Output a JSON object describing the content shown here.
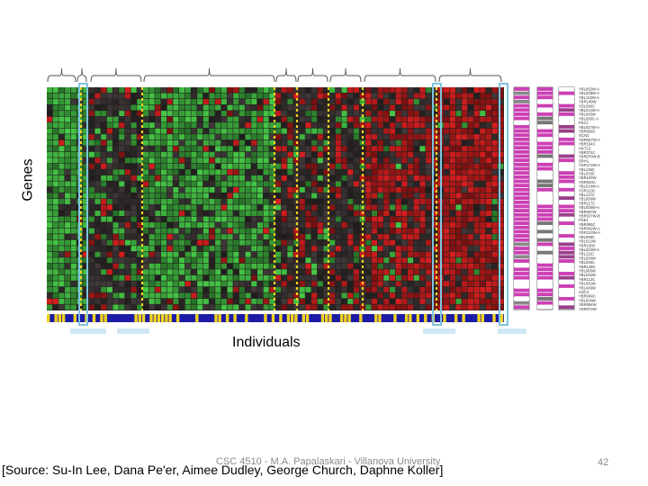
{
  "axis_labels": {
    "genes": "Genes",
    "individuals": "Individuals"
  },
  "footer": {
    "course_info": "CSC 4510 - M.A. Papalaskari - Villanova University",
    "source": "[Source: Su-In Lee, Dana Pe'er, Aimee Dudley, George Church, Daphne Koller]",
    "page_number": "42"
  },
  "gene_names": [
    "YBL052W-A",
    "YBL028W-A",
    "YBL122W-A",
    "YBR149W",
    "YDL054C",
    "YBL012W-A",
    "YBL045W",
    "YBL050C-A",
    "PSC1",
    "YBL027W-A",
    "YBR009C",
    "GCN2",
    "YDR027W-A",
    "YBR154C",
    "HXT13",
    "YBR374C",
    "YBR070W-B",
    "SRH1",
    "YDR172W-A",
    "YBL136C",
    "YBL033C",
    "YBR103W",
    "YDR040C",
    "YBL014W-A",
    "YDR113C",
    "YBL137C",
    "YBL056W",
    "YBR117C",
    "YBL028W-A",
    "YBR007W",
    "YBR027W-B",
    "PSE1",
    "YBR085C",
    "YBR042W-A",
    "YDR122W-A",
    "YBL098C",
    "YBL012W",
    "YBR150C",
    "YBL022W-A",
    "YBL111C",
    "YBL034W",
    "YBL036C",
    "YBR138C",
    "YBL085W",
    "YBL032W",
    "YBR112C",
    "YBL042W",
    "YBL049W",
    "AOC4",
    "YBR049C",
    "YBL004W",
    "YBR084W",
    "YDR072W"
  ],
  "colors": {
    "green": "#3fbe3f",
    "red": "#cc1a1a",
    "dark": "#2a2a2a",
    "magenta": "#cc3fb4",
    "yellow": "#f1d31e",
    "blue": "#1c1ca6",
    "highlight": "#7fc4e0"
  }
}
